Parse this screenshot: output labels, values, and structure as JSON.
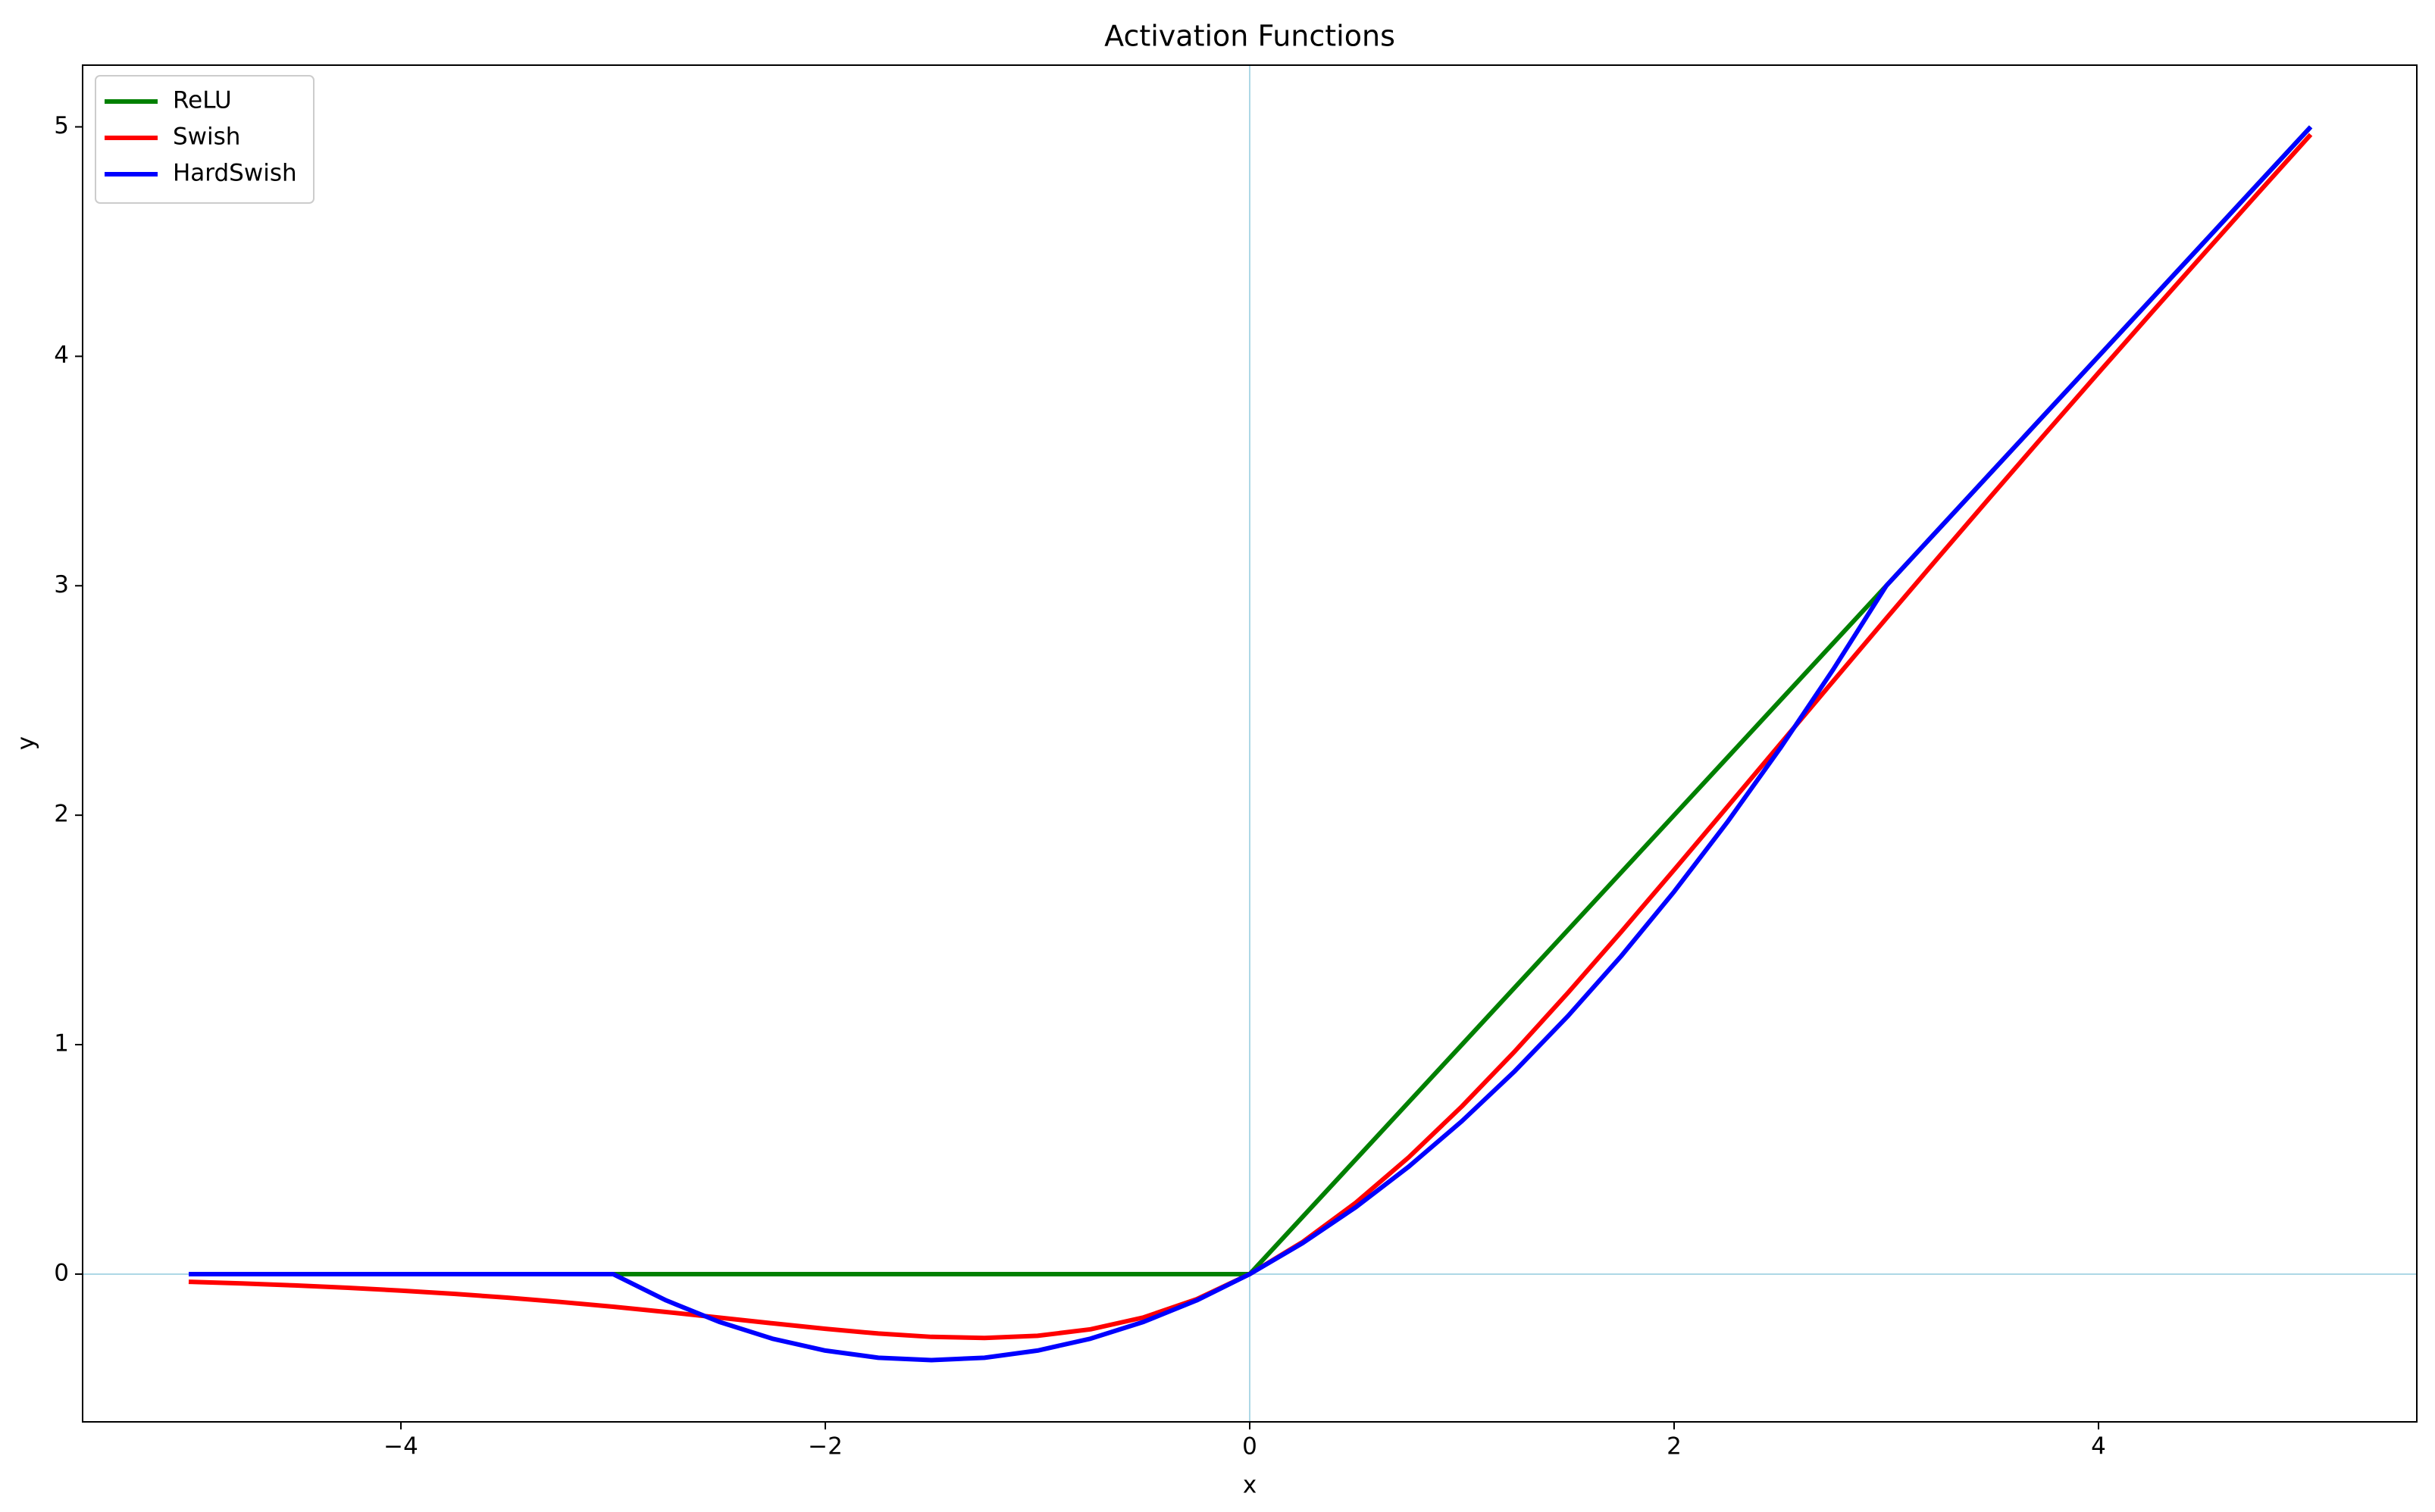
{
  "chart_data": {
    "type": "line",
    "title": "Activation Functions",
    "x_label": "x",
    "y_label": "y",
    "x": [
      -5,
      -4.75,
      -4.5,
      -4.25,
      -4,
      -3.75,
      -3.5,
      -3.25,
      -3,
      -2.75,
      -2.5,
      -2.25,
      -2,
      -1.75,
      -1.5,
      -1.25,
      -1,
      -0.75,
      -0.5,
      -0.25,
      0,
      0.25,
      0.5,
      0.75,
      1,
      1.25,
      1.5,
      1.75,
      2,
      2.25,
      2.5,
      2.75,
      3,
      3.25,
      3.5,
      3.75,
      4,
      4.25,
      4.5,
      4.75,
      5
    ],
    "series": [
      {
        "name": "ReLU",
        "color": "#008000",
        "values": [
          0,
          0,
          0,
          0,
          0,
          0,
          0,
          0,
          0,
          0,
          0,
          0,
          0,
          0,
          0,
          0,
          0,
          0,
          0,
          0,
          0,
          0.25,
          0.5,
          0.75,
          1,
          1.25,
          1.5,
          1.75,
          2,
          2.25,
          2.5,
          2.75,
          3,
          3.25,
          3.5,
          3.75,
          4,
          4.25,
          4.5,
          4.75,
          5
        ]
      },
      {
        "name": "Swish",
        "color": "#ff0000",
        "values": [
          -0.0335,
          -0.0407,
          -0.0494,
          -0.0598,
          -0.0719,
          -0.0862,
          -0.1026,
          -0.1213,
          -0.1423,
          -0.1652,
          -0.1896,
          -0.2145,
          -0.2384,
          -0.2591,
          -0.2736,
          -0.2784,
          -0.2689,
          -0.2406,
          -0.1888,
          -0.1095,
          0,
          0.1405,
          0.3112,
          0.5094,
          0.7311,
          0.9716,
          1.2264,
          1.4909,
          1.7616,
          2.0355,
          2.3104,
          2.5848,
          2.8577,
          3.1287,
          3.3974,
          3.6638,
          3.9281,
          4.1902,
          4.4506,
          4.7093,
          4.9665
        ]
      },
      {
        "name": "HardSwish",
        "color": "#0000ff",
        "values": [
          0,
          0,
          0,
          0,
          0,
          0,
          0,
          0,
          0,
          -0.1146,
          -0.2083,
          -0.2813,
          -0.3333,
          -0.3646,
          -0.375,
          -0.3646,
          -0.3333,
          -0.2813,
          -0.2083,
          -0.1146,
          0,
          0.1354,
          0.2917,
          0.4688,
          0.6667,
          0.8854,
          1.125,
          1.3854,
          1.6667,
          1.9688,
          2.2917,
          2.6354,
          3,
          3.25,
          3.5,
          3.75,
          4,
          4.25,
          4.5,
          4.75,
          5
        ]
      }
    ],
    "xlim": [
      -5.5,
      5.5
    ],
    "ylim": [
      -0.644,
      5.269
    ],
    "xticks": [
      {
        "value": -4,
        "label": "−4"
      },
      {
        "value": -2,
        "label": "−2"
      },
      0,
      2,
      4
    ],
    "yticks": [
      0,
      1,
      2,
      3,
      4,
      5
    ],
    "hline": 0,
    "vline": 0,
    "ref_line_color": "#add8e6",
    "grid": false,
    "legend": "upper left"
  }
}
